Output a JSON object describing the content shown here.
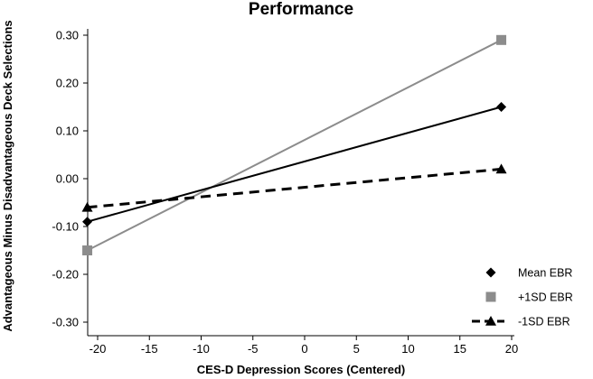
{
  "chart_data": {
    "type": "line",
    "title": "Performance",
    "xlabel": "CES-D Depression Scores (Centered)",
    "ylabel": "Advantageous Minus Disadvantageous Deck Selections",
    "xlim": [
      -22,
      20
    ],
    "ylim": [
      -0.33,
      0.33
    ],
    "x_ticks": [
      -20,
      -15,
      -10,
      -5,
      0,
      5,
      10,
      15,
      20
    ],
    "x_tick_labels": [
      "-20",
      "-15",
      "-10",
      "-5",
      "0",
      "5",
      "10",
      "15",
      "20"
    ],
    "y_ticks": [
      0.3,
      0.2,
      0.1,
      0.0,
      -0.1,
      -0.2,
      -0.3
    ],
    "y_tick_labels": [
      "0.30",
      "0.20",
      "0.10",
      "0.00",
      "-0.10",
      "-0.20",
      "-0.30"
    ],
    "grid": false,
    "legend_position": "bottom-right",
    "series": [
      {
        "name": "Mean EBR",
        "x": [
          -21,
          19
        ],
        "values": [
          -0.09,
          0.15
        ],
        "color": "#000000",
        "marker": "diamond",
        "line": "solid"
      },
      {
        "name": "+1SD EBR",
        "x": [
          -21,
          19
        ],
        "values": [
          -0.15,
          0.29
        ],
        "color": "#8c8c8c",
        "marker": "square",
        "line": "solid"
      },
      {
        "name": "-1SD EBR",
        "x": [
          -21,
          19
        ],
        "values": [
          -0.06,
          0.02
        ],
        "color": "#000000",
        "marker": "triangle",
        "line": "dashed"
      }
    ]
  }
}
